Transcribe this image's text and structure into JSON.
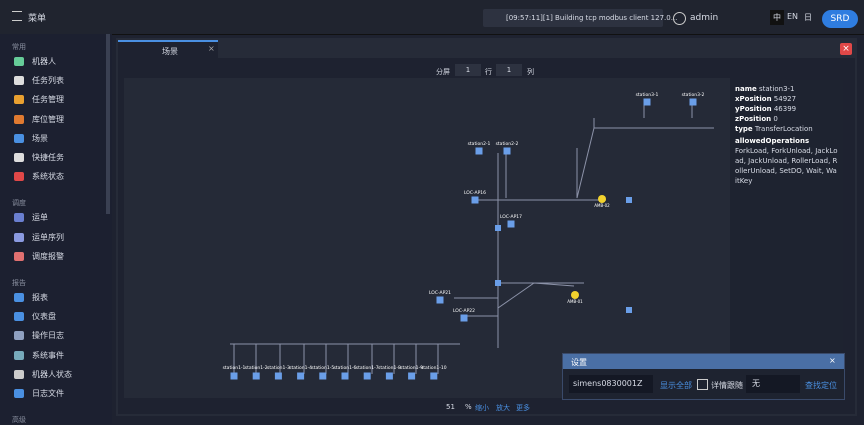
{
  "header": {
    "menu": "菜单",
    "log": "[09:57:11][1] Building tcp modbus client 127.0...",
    "user": "admin",
    "lang_zh": "中",
    "lang_en": "EN",
    "lang_ja": "日",
    "brand": "SRD"
  },
  "sidebar": {
    "sections": [
      {
        "title": "常用",
        "items": [
          "机器人",
          "任务列表",
          "任务管理",
          "库位管理",
          "场景",
          "快捷任务",
          "系统状态"
        ]
      },
      {
        "title": "调度",
        "items": [
          "运单",
          "运单序列",
          "调度报警"
        ]
      },
      {
        "title": "报告",
        "items": [
          "报表",
          "仪表盘",
          "操作日志",
          "系统事件",
          "机器人状态",
          "日志文件"
        ]
      },
      {
        "title": "高级",
        "items": []
      }
    ]
  },
  "tab": {
    "title": "场景"
  },
  "toolbar": {
    "split": "分屏",
    "rows": "1",
    "row_label": "行",
    "cols": "1",
    "col_label": "列"
  },
  "info": {
    "fields": [
      [
        "name",
        "station3-1"
      ],
      [
        "xPosition",
        "54927"
      ],
      [
        "yPosition",
        "46399"
      ],
      [
        "zPosition",
        "0"
      ],
      [
        "type",
        "TransferLocation"
      ]
    ],
    "ops_label": "allowedOperations",
    "ops": "ForkLoad, ForkUnload, JackLoad, JackUnload, RollerLoad, RollerUnload, SetDO, Wait, WaitKey"
  },
  "settings": {
    "title": "设置",
    "robot": "simens0830001Z",
    "show_all": "显示全部",
    "follow": "详情跟随",
    "none": "无",
    "locate": "查找定位"
  },
  "zoom": {
    "value": "51",
    "unit": "%",
    "out": "缩小",
    "in": "放大",
    "more": "更多"
  },
  "map": {
    "stations": [
      "station1-1",
      "station1-2",
      "station1-3",
      "station1-4",
      "station1-5",
      "station1-6",
      "station1-7",
      "station1-8",
      "station1-9",
      "station1-10",
      "station2-1",
      "station2-2",
      "station3-1",
      "station3-2"
    ],
    "locs": [
      "LOC-AP16",
      "LOC-AP17",
      "LOC-AP21",
      "LOC-AP22"
    ],
    "robots": [
      "AMB-02",
      "AMB-01"
    ]
  }
}
